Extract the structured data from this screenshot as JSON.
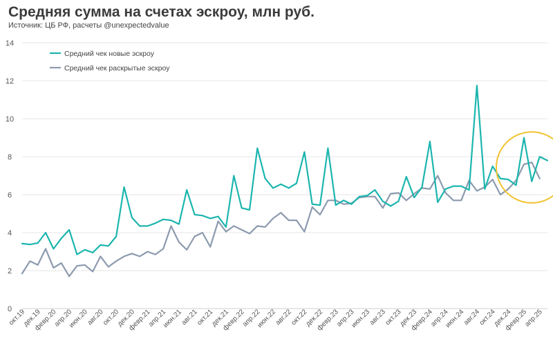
{
  "chart_data": {
    "type": "line",
    "title": "Средняя сумма на счетах эскроу, млн руб.",
    "subtitle": "Источник: ЦБ РФ, расчеты @unexpectedvalue",
    "ylim": [
      0,
      14
    ],
    "yticks": [
      0,
      2,
      4,
      6,
      8,
      10,
      12,
      14
    ],
    "grid": true,
    "legend_position": "top-left",
    "highlight": {
      "shape": "circle",
      "color": "#F2C230",
      "x_from_index": 61,
      "x_to_index": 69
    },
    "x_tick_labels": [
      "окт.19",
      "дек.19",
      "февр.20",
      "апр.20",
      "июн.20",
      "авг.20",
      "окт.20",
      "дек.20",
      "февр.21",
      "апр.21",
      "июн.21",
      "авг.21",
      "окт.21",
      "дек.21",
      "февр.22",
      "апр.22",
      "июн.22",
      "авг.22",
      "окт.22",
      "дек.22",
      "февр.23",
      "апр.23",
      "июн.23",
      "авг.23",
      "окт.23",
      "дек.23",
      "февр.24",
      "апр.24",
      "июн.24",
      "авг.24",
      "окт.24",
      "дек.24",
      "февр.25",
      "апр.25"
    ],
    "series": [
      {
        "name": "Средний чек новые эскроу",
        "color": "#1BB5AE",
        "values": [
          3.42,
          3.38,
          3.45,
          4.0,
          3.15,
          3.7,
          4.15,
          2.85,
          3.1,
          2.95,
          3.35,
          3.3,
          3.8,
          6.4,
          4.8,
          4.35,
          4.35,
          4.5,
          4.7,
          4.65,
          4.45,
          6.25,
          4.95,
          4.9,
          4.75,
          4.85,
          4.3,
          7.0,
          5.3,
          5.2,
          8.45,
          6.85,
          6.35,
          6.55,
          6.35,
          6.6,
          8.25,
          5.5,
          5.45,
          8.45,
          5.45,
          5.7,
          5.5,
          5.9,
          5.95,
          6.25,
          5.65,
          5.4,
          5.65,
          6.95,
          5.85,
          6.4,
          8.8,
          5.6,
          6.3,
          6.45,
          6.45,
          6.25,
          11.75,
          6.3,
          7.5,
          6.85,
          6.8,
          6.5,
          9.0,
          6.7,
          8.0,
          7.8
        ]
      },
      {
        "name": "Средний чек раскрытые эскроу",
        "color": "#8C9AAE",
        "values": [
          1.85,
          2.5,
          2.3,
          3.15,
          2.15,
          2.4,
          1.7,
          2.25,
          2.3,
          1.95,
          2.75,
          2.2,
          2.5,
          2.75,
          2.9,
          2.75,
          3.0,
          2.85,
          3.15,
          4.35,
          3.5,
          3.1,
          3.8,
          4.0,
          3.25,
          4.6,
          4.05,
          4.35,
          4.15,
          3.95,
          4.35,
          4.3,
          4.75,
          5.05,
          4.65,
          4.65,
          4.05,
          5.35,
          4.95,
          5.7,
          5.7,
          5.5,
          5.55,
          5.85,
          5.9,
          5.9,
          5.3,
          6.05,
          6.1,
          5.7,
          6.05,
          6.35,
          6.3,
          7.0,
          6.1,
          5.7,
          5.7,
          6.75,
          6.2,
          6.4,
          6.8,
          6.0,
          6.3,
          6.75,
          7.6,
          7.7,
          6.85
        ]
      }
    ]
  }
}
